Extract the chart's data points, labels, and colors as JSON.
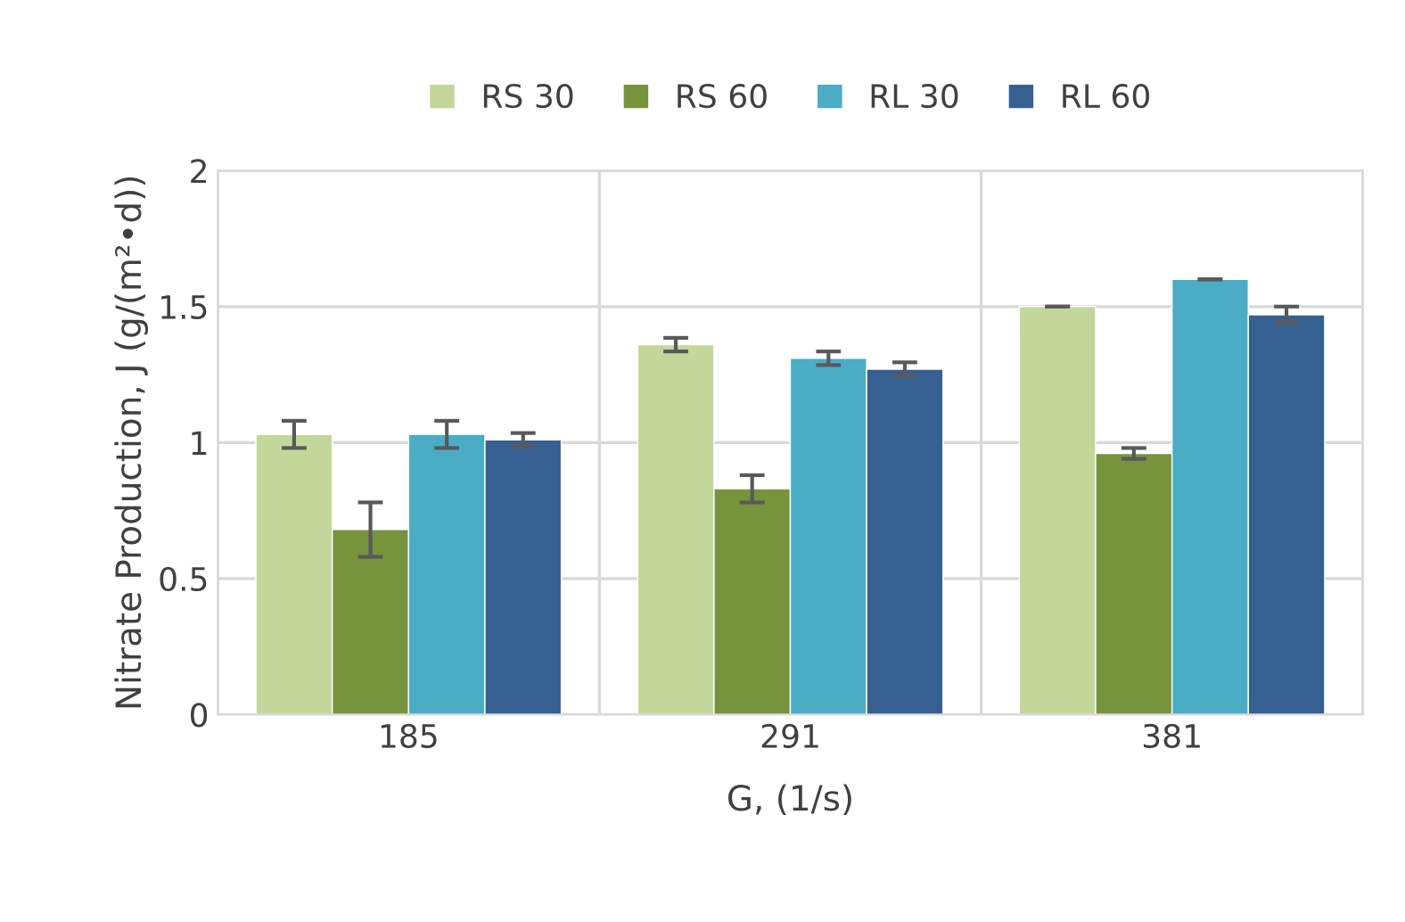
{
  "chart_data": {
    "type": "bar",
    "xlabel": "G, (1/s)",
    "ylabel": "Nitrate Production, J (g/(m²•d))",
    "categories": [
      "185",
      "291",
      "381"
    ],
    "series": [
      {
        "name": "RS 30",
        "color": "#c4d79b",
        "values": [
          1.03,
          1.36,
          1.5
        ],
        "errors": [
          0.05,
          0.025,
          0
        ]
      },
      {
        "name": "RS 60",
        "color": "#77933c",
        "values": [
          0.68,
          0.83,
          0.96
        ],
        "errors": [
          0.1,
          0.05,
          0.02
        ]
      },
      {
        "name": "RL 30",
        "color": "#4bacc6",
        "values": [
          1.03,
          1.31,
          1.6
        ],
        "errors": [
          0.05,
          0.025,
          0
        ]
      },
      {
        "name": "RL 60",
        "color": "#366092",
        "values": [
          1.01,
          1.27,
          1.47
        ],
        "errors": [
          0.025,
          0.025,
          0.03
        ]
      }
    ],
    "ylim": [
      0,
      2
    ],
    "yticks": [
      0,
      0.5,
      1,
      1.5,
      2
    ],
    "grid": true,
    "legend": "top"
  }
}
